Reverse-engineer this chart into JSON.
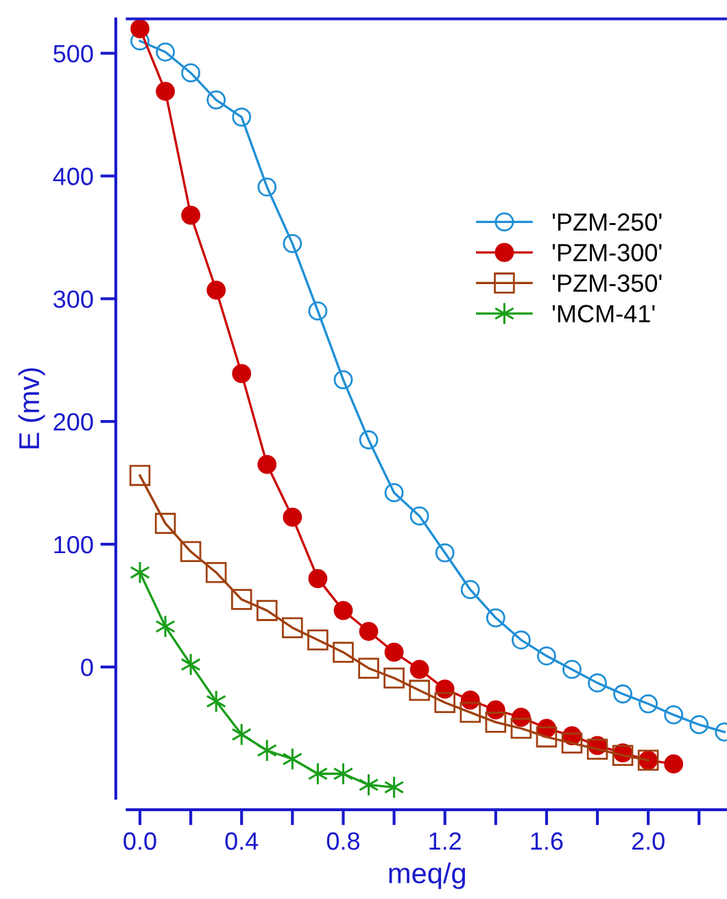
{
  "chart_data": {
    "type": "line",
    "xlabel": "meq/g",
    "ylabel": "E (mv)",
    "xlim": [
      -0.05,
      2.31
    ],
    "ylim": [
      -107,
      528
    ],
    "xticks": [
      {
        "value": 0,
        "label": "0.0"
      },
      {
        "value": 0.2,
        "label": null
      },
      {
        "value": 0.4,
        "label": "0.4"
      },
      {
        "value": 0.6,
        "label": null
      },
      {
        "value": 0.8,
        "label": "0.8"
      },
      {
        "value": 1.0,
        "label": null
      },
      {
        "value": 1.2,
        "label": "1.2"
      },
      {
        "value": 1.4,
        "label": null
      },
      {
        "value": 1.6,
        "label": "1.6"
      },
      {
        "value": 1.8,
        "label": null
      },
      {
        "value": 2.0,
        "label": "2.0"
      },
      {
        "value": 2.2,
        "label": null
      }
    ],
    "yticks": [
      0,
      100,
      200,
      300,
      400,
      500
    ],
    "grid": false,
    "legend": "top right",
    "line_style": "solid",
    "series": [
      {
        "name": "'PZM-250'",
        "color": "#1f8fd6",
        "marker": "circle",
        "x": [
          0,
          0.1,
          0.2,
          0.3,
          0.4,
          0.5,
          0.6,
          0.7,
          0.8,
          0.9,
          1.0,
          1.1,
          1.2,
          1.3,
          1.4,
          1.5,
          1.6,
          1.7,
          1.8,
          1.9,
          2.0,
          2.1,
          2.2,
          2.3
        ],
        "values": [
          510,
          501,
          484,
          462,
          448,
          391,
          345,
          290,
          234,
          185,
          142,
          123,
          93,
          63,
          40,
          22,
          9,
          -2,
          -13,
          -22,
          -30,
          -39,
          -47,
          -53
        ]
      },
      {
        "name": "'PZM-300'",
        "color": "#cc0000",
        "marker": "circle",
        "x": [
          0,
          0.1,
          0.2,
          0.3,
          0.4,
          0.5,
          0.6,
          0.7,
          0.8,
          0.9,
          1.0,
          1.1,
          1.2,
          1.3,
          1.4,
          1.5,
          1.6,
          1.7,
          1.8,
          1.9,
          2.0,
          2.1
        ],
        "values": [
          520,
          469,
          368,
          307,
          239,
          165,
          122,
          72,
          46,
          29,
          12,
          -2,
          -18,
          -27,
          -35,
          -41,
          -50,
          -56,
          -64,
          -70,
          -76,
          -79
        ]
      },
      {
        "name": "'PZM-350'",
        "color": "#a0400f",
        "marker": "square",
        "x": [
          0,
          0.1,
          0.2,
          0.3,
          0.4,
          0.5,
          0.6,
          0.7,
          0.8,
          0.9,
          1.0,
          1.1,
          1.2,
          1.3,
          1.4,
          1.5,
          1.6,
          1.7,
          1.8,
          1.9,
          2.0
        ],
        "values": [
          156,
          117,
          94,
          77,
          55,
          46,
          32,
          22,
          12,
          -1,
          -9,
          -19,
          -29,
          -37,
          -45,
          -50,
          -57,
          -62,
          -67,
          -72,
          -76
        ]
      },
      {
        "name": "'MCM-41'",
        "color": "#1a9e1a",
        "marker": "cross",
        "x": [
          0,
          0.1,
          0.2,
          0.3,
          0.4,
          0.5,
          0.6,
          0.7,
          0.8,
          0.9,
          1.0
        ],
        "values": [
          77,
          33,
          2,
          -28,
          -55,
          -68,
          -75,
          -87,
          -87,
          -96,
          -98
        ]
      }
    ]
  }
}
